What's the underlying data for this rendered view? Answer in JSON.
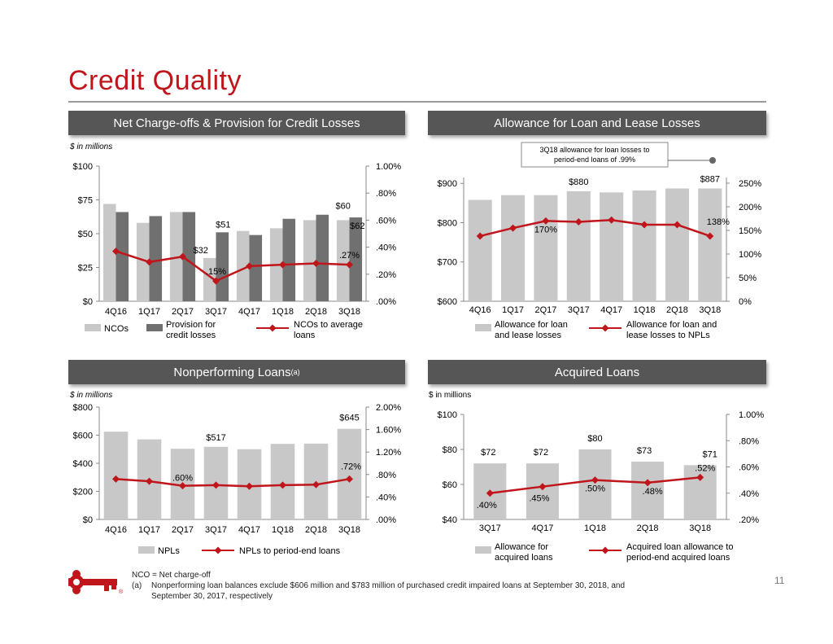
{
  "title": "Credit Quality",
  "page_number": "11",
  "colors": {
    "accent": "#c0161b",
    "bar_light": "#c8c8c8",
    "bar_dark": "#707070",
    "header_bg": "#565656"
  },
  "panels": {
    "nco": {
      "header": "Net Charge-offs & Provision for Credit Losses",
      "unit": "$ in millions"
    },
    "allowance": {
      "header": "Allowance for Loan and Lease Losses",
      "callout": [
        "3Q18 allowance for loan losses to",
        "period-end loans of .99%"
      ]
    },
    "npl": {
      "header": "Nonperforming Loans",
      "header_sup": "(a)",
      "unit": "$ in millions"
    },
    "acquired": {
      "header": "Acquired Loans",
      "unit": "$ in millions"
    }
  },
  "chart_data": [
    {
      "id": "nco",
      "type": "bar",
      "categories": [
        "4Q16",
        "1Q17",
        "2Q17",
        "3Q17",
        "4Q17",
        "1Q18",
        "2Q18",
        "3Q18"
      ],
      "series": [
        {
          "name": "NCOs",
          "kind": "bar",
          "axis": "left",
          "values": [
            72,
            58,
            66,
            32,
            52,
            54,
            60,
            60
          ]
        },
        {
          "name": "Provision for credit losses",
          "kind": "bar",
          "axis": "left",
          "values": [
            66,
            63,
            66,
            51,
            49,
            61,
            64,
            62
          ]
        },
        {
          "name": "NCOs to average loans",
          "kind": "line",
          "axis": "right",
          "values": [
            0.37,
            0.29,
            0.33,
            0.15,
            0.26,
            0.27,
            0.28,
            0.27
          ]
        }
      ],
      "left_axis": {
        "ticks": [
          "$0",
          "$25",
          "$50",
          "$75",
          "$100"
        ],
        "range": [
          0,
          100
        ]
      },
      "right_axis": {
        "ticks": [
          ".00%",
          ".20%",
          ".40%",
          ".60%",
          ".80%",
          "1.00%"
        ],
        "range": [
          0,
          1.0
        ]
      },
      "labels": [
        {
          "text": "$32",
          "series": 0,
          "index": 3
        },
        {
          "text": "$51",
          "series": 1,
          "index": 3
        },
        {
          "text": "$60",
          "series": 0,
          "index": 7
        },
        {
          "text": "$62",
          "series": 1,
          "index": 7
        },
        {
          "text": ".15%",
          "series": 2,
          "index": 3
        },
        {
          "text": ".27%",
          "series": 2,
          "index": 7
        }
      ],
      "legend": [
        "NCOs",
        "Provision for credit losses",
        "NCOs to average loans"
      ]
    },
    {
      "id": "allowance",
      "type": "bar",
      "categories": [
        "4Q16",
        "1Q17",
        "2Q17",
        "3Q17",
        "4Q17",
        "1Q18",
        "2Q18",
        "3Q18"
      ],
      "series": [
        {
          "name": "Allowance for loan and lease losses",
          "kind": "bar",
          "axis": "left",
          "values": [
            858,
            870,
            870,
            880,
            877,
            882,
            887,
            887
          ]
        },
        {
          "name": "Allowance for loan and lease losses to NPLs",
          "kind": "line",
          "axis": "right",
          "values": [
            138,
            155,
            170,
            168,
            172,
            162,
            162,
            138
          ]
        }
      ],
      "left_axis": {
        "ticks": [
          "$600",
          "$700",
          "$800",
          "$900"
        ],
        "range": [
          600,
          915
        ]
      },
      "right_axis": {
        "ticks": [
          "0%",
          "50%",
          "100%",
          "150%",
          "200%",
          "250%"
        ],
        "range": [
          0,
          262
        ]
      },
      "labels": [
        {
          "text": "$880",
          "series": 0,
          "index": 3
        },
        {
          "text": "$887",
          "series": 0,
          "index": 7
        },
        {
          "text": "170%",
          "series": 1,
          "index": 2
        },
        {
          "text": "138%",
          "series": 1,
          "index": 7
        }
      ],
      "legend": [
        "Allowance for loan and lease losses",
        "Allowance for loan and lease losses to NPLs"
      ]
    },
    {
      "id": "npl",
      "type": "bar",
      "categories": [
        "4Q16",
        "1Q17",
        "2Q17",
        "3Q17",
        "4Q17",
        "1Q18",
        "2Q18",
        "3Q18"
      ],
      "series": [
        {
          "name": "NPLs",
          "kind": "bar",
          "axis": "left",
          "values": [
            625,
            570,
            503,
            517,
            500,
            538,
            540,
            645
          ]
        },
        {
          "name": "NPLs to period-end loans",
          "kind": "line",
          "axis": "right",
          "values": [
            0.72,
            0.68,
            0.6,
            0.61,
            0.59,
            0.61,
            0.62,
            0.72
          ]
        }
      ],
      "left_axis": {
        "ticks": [
          "$0",
          "$200",
          "$400",
          "$600",
          "$800"
        ],
        "range": [
          0,
          800
        ]
      },
      "right_axis": {
        "ticks": [
          ".00%",
          ".40%",
          ".80%",
          "1.20%",
          "1.60%",
          "2.00%"
        ],
        "range": [
          0,
          2.0
        ]
      },
      "labels": [
        {
          "text": "$517",
          "series": 0,
          "index": 3
        },
        {
          "text": "$645",
          "series": 0,
          "index": 7
        },
        {
          "text": ".60%",
          "series": 1,
          "index": 2
        },
        {
          "text": ".72%",
          "series": 1,
          "index": 7
        }
      ],
      "legend": [
        "NPLs",
        "NPLs to period-end loans"
      ]
    },
    {
      "id": "acquired",
      "type": "bar",
      "categories": [
        "3Q17",
        "4Q17",
        "1Q18",
        "2Q18",
        "3Q18"
      ],
      "series": [
        {
          "name": "Allowance for acquired loans",
          "kind": "bar",
          "axis": "left",
          "values": [
            72,
            72,
            80,
            73,
            71
          ]
        },
        {
          "name": "Acquired loan allowance to period-end acquired loans",
          "kind": "line",
          "axis": "right",
          "values": [
            0.4,
            0.45,
            0.5,
            0.48,
            0.52
          ]
        }
      ],
      "left_axis": {
        "ticks": [
          "$40",
          "$60",
          "$80",
          "$100"
        ],
        "range": [
          40,
          100
        ]
      },
      "right_axis": {
        "ticks": [
          ".20%",
          ".40%",
          ".60%",
          ".80%",
          "1.00%"
        ],
        "range": [
          0.2,
          1.0
        ]
      },
      "labels": [
        {
          "text": "$72",
          "series": 0,
          "index": 0
        },
        {
          "text": "$72",
          "series": 0,
          "index": 1
        },
        {
          "text": "$80",
          "series": 0,
          "index": 2
        },
        {
          "text": "$73",
          "series": 0,
          "index": 3
        },
        {
          "text": "$71",
          "series": 0,
          "index": 4
        },
        {
          "text": ".40%",
          "series": 1,
          "index": 0
        },
        {
          "text": ".45%",
          "series": 1,
          "index": 1
        },
        {
          "text": ".50%",
          "series": 1,
          "index": 2
        },
        {
          "text": ".48%",
          "series": 1,
          "index": 3
        },
        {
          "text": ".52%",
          "series": 1,
          "index": 4
        }
      ],
      "legend": [
        "Allowance for acquired loans",
        "Acquired loan allowance to period-end acquired loans"
      ]
    }
  ],
  "footnotes": {
    "nco_def": "NCO = Net charge-off",
    "a_marker": "(a)",
    "a_line1": "Nonperforming loan balances exclude $606 million and $783 million of purchased credit impaired loans at September 30, 2018, and",
    "a_line2": "September 30, 2017, respectively"
  }
}
